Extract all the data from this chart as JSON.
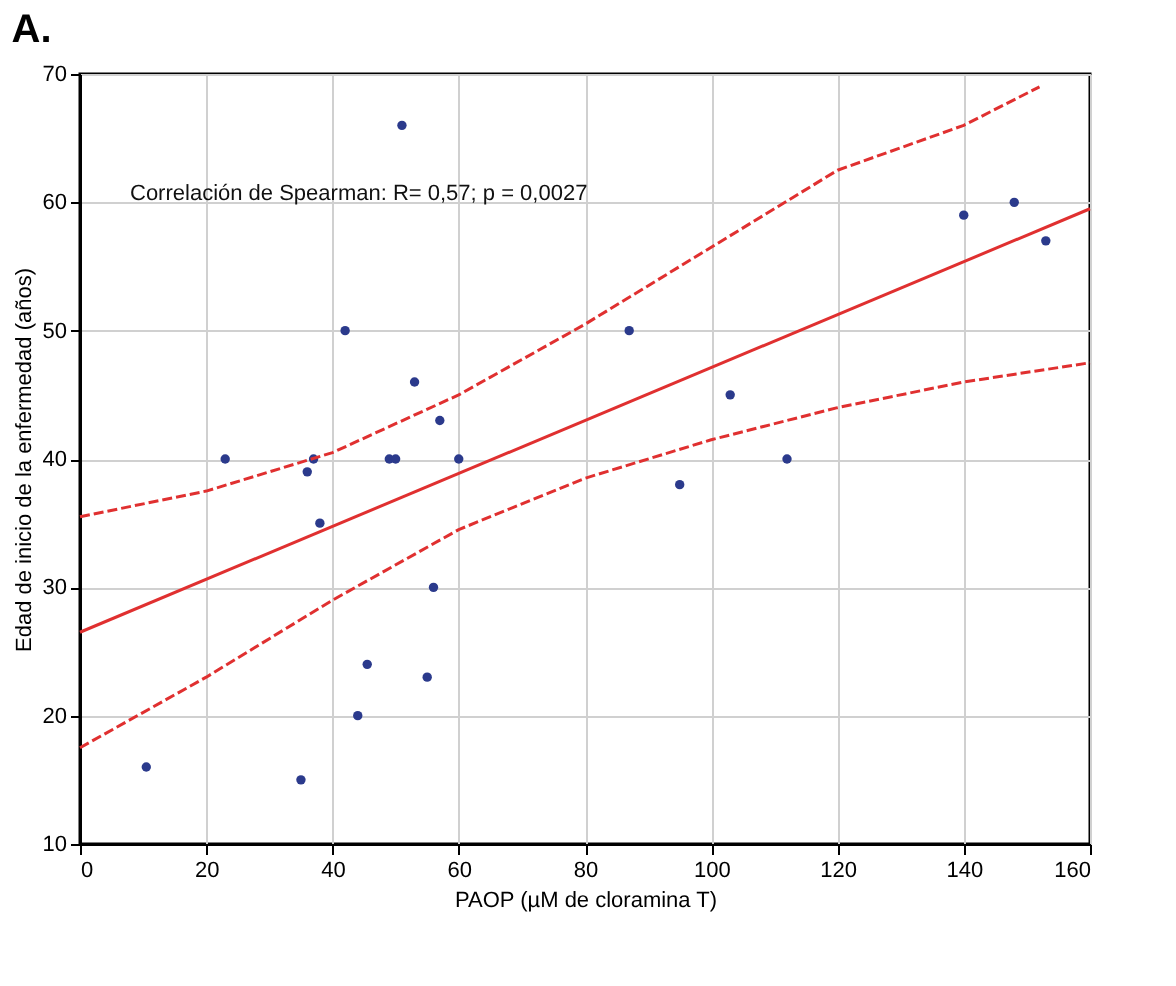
{
  "chart_data": {
    "type": "scatter",
    "title": "A.",
    "xlabel": "PAOP (µM de cloramina T)",
    "ylabel": "Edad de inicio de la enfermedad (años)",
    "xlim": [
      0,
      160
    ],
    "xticks": [
      0,
      20,
      40,
      60,
      80,
      100,
      120,
      140,
      160
    ],
    "ylim": [
      10,
      70
    ],
    "yticks": [
      10,
      20,
      30,
      40,
      50,
      60,
      70
    ],
    "grid": true,
    "annotations": [
      "Correlación de Spearman: R= 0,57; p = 0,0027"
    ],
    "series": [
      {
        "marker": "circle",
        "color": "#2b3a8c",
        "x": [
          10.5,
          23,
          35,
          36,
          37,
          38,
          42,
          44,
          45.5,
          49,
          50,
          51,
          53,
          55,
          56,
          57,
          60,
          87,
          95,
          103,
          112,
          140,
          148,
          153
        ],
        "values": [
          16,
          40,
          15,
          39,
          40,
          35,
          50,
          20,
          24,
          40,
          40,
          66,
          46,
          23,
          30,
          43,
          40,
          50,
          38,
          45,
          40,
          59,
          60,
          57
        ]
      },
      {
        "type": "line",
        "color": "#e03030",
        "line_style": "solid",
        "x": [
          0,
          160
        ],
        "values": [
          26.5,
          59.5
        ]
      },
      {
        "type": "line",
        "color": "#e03030",
        "line_style": "dashed",
        "x": [
          0,
          20,
          40,
          60,
          80,
          100,
          120,
          140,
          152
        ],
        "values": [
          35.5,
          37.5,
          40.5,
          45,
          50.5,
          56.5,
          62.5,
          66,
          69
        ]
      },
      {
        "type": "line",
        "color": "#e03030",
        "line_style": "dashed",
        "x": [
          0,
          20,
          40,
          60,
          80,
          100,
          120,
          140,
          160
        ],
        "values": [
          17.5,
          23,
          29,
          34.5,
          38.5,
          41.5,
          44,
          46,
          47.5
        ]
      }
    ]
  }
}
